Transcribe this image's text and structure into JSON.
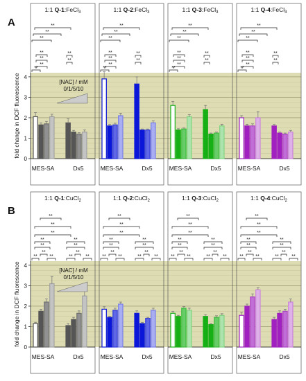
{
  "chart_data": [
    {
      "type": "bar",
      "panel_label": "A",
      "ylabel": "fold change in DCF fluorescence",
      "y_ticks": [
        "0",
        "1",
        "2",
        "3",
        "4"
      ],
      "ylim": [
        0,
        4.2
      ],
      "cell_lines": [
        "MES-SA",
        "Dx5"
      ],
      "legend": {
        "text": "[NAC] / mM",
        "sub": "0/1/5/10"
      },
      "groups": [
        {
          "title": "1:1 Q-1:FeCl3",
          "color": "#555555",
          "values": [
            [
              2.05,
              1.65,
              1.7,
              2.05
            ],
            [
              1.75,
              1.3,
              1.2,
              1.3
            ]
          ],
          "errors": [
            [
              0.2,
              0.1,
              0.12,
              0.12
            ],
            [
              0.2,
              0.08,
              0.07,
              0.1
            ]
          ]
        },
        {
          "title": "1:1 Q-2:FeCl3",
          "color": "#0a16d8",
          "values": [
            [
              3.9,
              1.6,
              1.65,
              2.1
            ],
            [
              3.65,
              1.4,
              1.4,
              1.75
            ]
          ],
          "errors": [
            [
              0.35,
              0.07,
              0.08,
              0.12
            ],
            [
              0.35,
              0.05,
              0.05,
              0.1
            ]
          ]
        },
        {
          "title": "1:1 Q-3:FeCl3",
          "color": "#16b016",
          "values": [
            [
              2.6,
              1.4,
              1.45,
              2.05
            ],
            [
              2.4,
              1.2,
              1.25,
              1.6
            ]
          ],
          "errors": [
            [
              0.2,
              0.06,
              0.05,
              0.1
            ],
            [
              0.2,
              0.05,
              0.05,
              0.08
            ]
          ]
        },
        {
          "title": "1:1 Q-4:FeCl3",
          "color": "#a020c0",
          "values": [
            [
              2.0,
              1.6,
              1.6,
              2.0
            ],
            [
              1.6,
              1.25,
              1.2,
              1.3
            ]
          ],
          "errors": [
            [
              0.1,
              0.08,
              0.1,
              0.3
            ],
            [
              0.07,
              0.05,
              0.05,
              0.08
            ]
          ]
        }
      ]
    },
    {
      "type": "bar",
      "panel_label": "B",
      "ylabel": "fold change in DCF fluorescence",
      "y_ticks": [
        "0",
        "1",
        "2",
        "3",
        "4"
      ],
      "ylim": [
        0,
        4.2
      ],
      "cell_lines": [
        "MES-SA",
        "Dx5"
      ],
      "legend": {
        "text": "[NAC] / mM",
        "sub": "0/1/5/10"
      },
      "groups": [
        {
          "title": "1:1 Q-1:CuCl2",
          "color": "#555555",
          "values": [
            [
              1.15,
              1.75,
              2.2,
              3.1
            ],
            [
              1.05,
              1.35,
              1.65,
              2.5
            ]
          ],
          "errors": [
            [
              0.06,
              0.1,
              0.15,
              0.35
            ],
            [
              0.1,
              0.1,
              0.12,
              0.3
            ]
          ]
        },
        {
          "title": "1:1 Q-2:CuCl2",
          "color": "#0a16d8",
          "values": [
            [
              1.85,
              1.45,
              1.8,
              2.1
            ],
            [
              1.65,
              1.15,
              1.4,
              1.8
            ]
          ],
          "errors": [
            [
              0.12,
              0.06,
              0.1,
              0.1
            ],
            [
              0.12,
              0.05,
              0.05,
              0.1
            ]
          ]
        },
        {
          "title": "1:1 Q-3:CuCl2",
          "color": "#16b016",
          "values": [
            [
              1.65,
              1.5,
              1.9,
              1.8
            ],
            [
              1.5,
              1.1,
              1.45,
              1.55
            ]
          ],
          "errors": [
            [
              0.1,
              0.05,
              0.08,
              0.1
            ],
            [
              0.08,
              0.05,
              0.08,
              0.08
            ]
          ]
        },
        {
          "title": "1:1 Q-4:CuCl2",
          "color": "#a020c0",
          "values": [
            [
              1.55,
              2.0,
              2.45,
              2.8
            ],
            [
              1.35,
              1.65,
              1.75,
              2.2
            ]
          ],
          "errors": [
            [
              0.15,
              0.1,
              0.15,
              0.1
            ],
            [
              0.1,
              0.12,
              0.1,
              0.15
            ]
          ]
        }
      ]
    }
  ]
}
